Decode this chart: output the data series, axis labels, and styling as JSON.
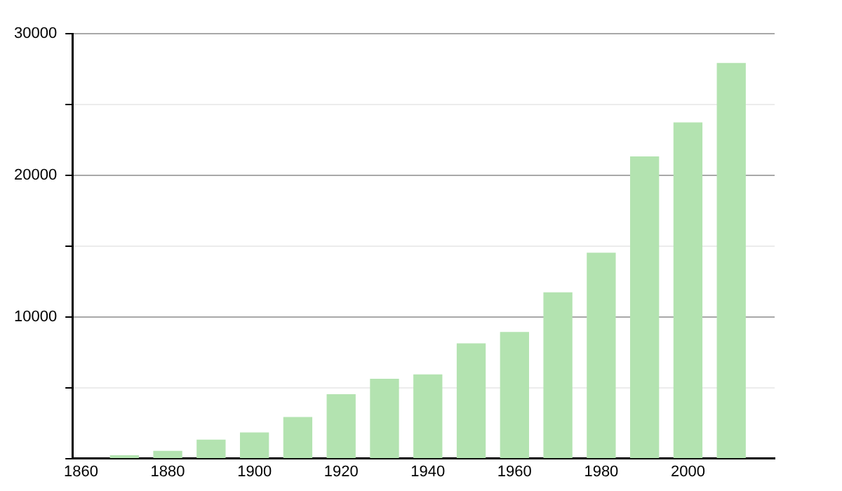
{
  "chart_data": {
    "type": "bar",
    "x": [
      1870,
      1880,
      1890,
      1900,
      1910,
      1920,
      1930,
      1940,
      1950,
      1960,
      1970,
      1980,
      1990,
      2000,
      2010
    ],
    "values": [
      200,
      500,
      1300,
      1800,
      2900,
      4500,
      5600,
      5900,
      8100,
      8900,
      11700,
      14500,
      21300,
      23700,
      27900
    ],
    "color": "#b3e3b0",
    "xlim": [
      1858,
      2020
    ],
    "xticks": [
      1860,
      1880,
      1900,
      1920,
      1940,
      1960,
      1980,
      2000
    ],
    "ylim": [
      0,
      30000
    ],
    "yticks": [
      {
        "value": 0,
        "label": null
      },
      {
        "value": 5000,
        "label": null
      },
      10000,
      {
        "value": 15000,
        "label": null
      },
      20000,
      {
        "value": 25000,
        "label": null
      },
      30000
    ],
    "grid": "y"
  }
}
